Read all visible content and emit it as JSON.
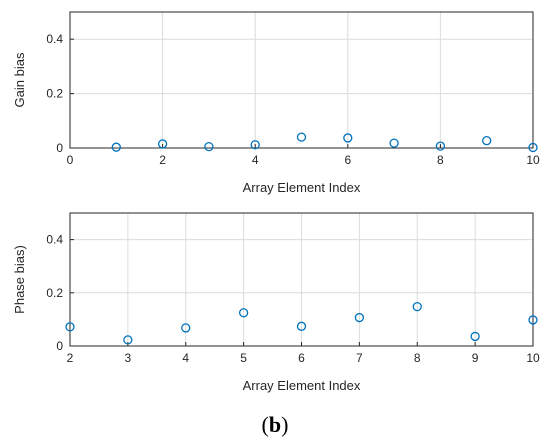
{
  "chart_data": [
    {
      "type": "scatter",
      "xlabel": "Array Element Index",
      "ylabel": "Gain bias",
      "xlim": [
        0,
        10
      ],
      "ylim": [
        0,
        0.5
      ],
      "xticks": [
        0,
        2,
        4,
        6,
        8,
        10
      ],
      "yticks": [
        0,
        0.2,
        0.4
      ],
      "xtick_labels": [
        "0",
        "2",
        "4",
        "6",
        "8",
        "10"
      ],
      "ytick_labels": [
        "0",
        "0.2",
        "0.4"
      ],
      "grid": true,
      "marker_color": "#0072BD",
      "points": [
        {
          "x": 1,
          "y": 0.003
        },
        {
          "x": 2,
          "y": 0.015
        },
        {
          "x": 3,
          "y": 0.005
        },
        {
          "x": 4,
          "y": 0.012
        },
        {
          "x": 5,
          "y": 0.04
        },
        {
          "x": 6,
          "y": 0.037
        },
        {
          "x": 7,
          "y": 0.018
        },
        {
          "x": 8,
          "y": 0.007
        },
        {
          "x": 9,
          "y": 0.027
        },
        {
          "x": 10,
          "y": 0.002
        }
      ]
    },
    {
      "type": "scatter",
      "xlabel": "Array Element Index",
      "ylabel": "Phase bias)",
      "xlim": [
        2,
        10
      ],
      "ylim": [
        0,
        0.5
      ],
      "xticks": [
        2,
        3,
        4,
        5,
        6,
        7,
        8,
        9,
        10
      ],
      "yticks": [
        0,
        0.2,
        0.4
      ],
      "xtick_labels": [
        "2",
        "3",
        "4",
        "5",
        "6",
        "7",
        "8",
        "9",
        "10"
      ],
      "ytick_labels": [
        "0",
        "0.2",
        "0.4"
      ],
      "grid": true,
      "marker_color": "#0072BD",
      "points": [
        {
          "x": 2,
          "y": 0.072
        },
        {
          "x": 3,
          "y": 0.023
        },
        {
          "x": 4,
          "y": 0.068
        },
        {
          "x": 5,
          "y": 0.125
        },
        {
          "x": 6,
          "y": 0.074
        },
        {
          "x": 7,
          "y": 0.107
        },
        {
          "x": 8,
          "y": 0.148
        },
        {
          "x": 9,
          "y": 0.036
        },
        {
          "x": 10,
          "y": 0.098
        }
      ]
    }
  ],
  "caption": {
    "open": "(",
    "letter": "b",
    "close": ")"
  }
}
